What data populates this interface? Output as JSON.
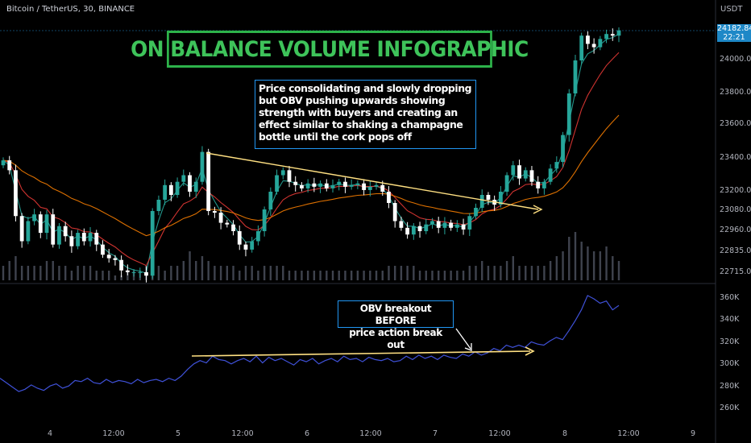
{
  "header": {
    "symbol": "Bitcoin / TetherUS, 30, BINANCE",
    "unit": "USDT"
  },
  "title": "ON BALANCE VOLUME INFOGRAPHIC",
  "annotations": {
    "price_note": "Price consolidating and slowly dropping but OBV pushing upwards showing strength with buyers and creating an effect similar to shaking a champagne bottle until the cork pops off",
    "obv_note_line1": "OBV breakout BEFORE",
    "obv_note_line2": "price action break out"
  },
  "last_price": {
    "value": "24182.84",
    "countdown": "22:21"
  },
  "colors": {
    "up": "#26a69a",
    "down": "#ffffff",
    "obv": "#3f51d8",
    "ema_fast": "#26a69a",
    "ema_mid": "#e53935",
    "ema_slow": "#f57c00",
    "trendline": "#ffe082",
    "title": "#3ec35a",
    "note_border": "#2196f3"
  },
  "chart_data": [
    {
      "type": "candlestick",
      "title": "",
      "y_ticks": [
        "24000.00",
        "23800.00",
        "23600.00",
        "23400.00",
        "23200.00",
        "23080.00",
        "22960.00",
        "22835.00",
        "22715.00"
      ],
      "x_ticks": [
        "4",
        "12:00",
        "5",
        "12:00",
        "6",
        "12:00",
        "7",
        "12:00",
        "8",
        "12:00",
        "9"
      ],
      "ylim": [
        22690,
        24320
      ],
      "series_close": [
        23390,
        23330,
        23050,
        22900,
        23020,
        23060,
        22950,
        23060,
        22880,
        22990,
        22930,
        22870,
        22950,
        22900,
        22950,
        22880,
        22820,
        22800,
        22790,
        22730,
        22720,
        22720,
        22720,
        22700,
        23080,
        23150,
        23240,
        23180,
        23260,
        23300,
        23200,
        23260,
        23440,
        23080,
        23070,
        23010,
        23000,
        22960,
        22880,
        22850,
        22900,
        22960,
        23090,
        23200,
        23300,
        23330,
        23260,
        23240,
        23220,
        23250,
        23230,
        23250,
        23220,
        23240,
        23260,
        23230,
        23240,
        23250,
        23210,
        23230,
        23240,
        23200,
        23130,
        23020,
        22980,
        22940,
        22990,
        22960,
        23000,
        23020,
        22980,
        23010,
        22980,
        23000,
        22970,
        23050,
        23100,
        23180,
        23150,
        23120,
        23200,
        23300,
        23360,
        23280,
        23330,
        23260,
        23220,
        23260,
        23340,
        23380,
        23540,
        23800,
        24000,
        24150,
        24100,
        24080,
        24130,
        24160,
        24150,
        24182
      ],
      "volume_rel": [
        0.3,
        0.4,
        0.5,
        0.3,
        0.3,
        0.3,
        0.3,
        0.4,
        0.4,
        0.3,
        0.3,
        0.2,
        0.3,
        0.3,
        0.3,
        0.2,
        0.2,
        0.2,
        0.1,
        0.1,
        0.2,
        0.2,
        0.2,
        0.3,
        0.4,
        0.3,
        0.2,
        0.3,
        0.3,
        0.4,
        0.6,
        0.4,
        0.5,
        0.4,
        0.3,
        0.3,
        0.3,
        0.3,
        0.2,
        0.3,
        0.3,
        0.2,
        0.3,
        0.3,
        0.3,
        0.3,
        0.2,
        0.2,
        0.2,
        0.2,
        0.2,
        0.2,
        0.2,
        0.2,
        0.2,
        0.2,
        0.2,
        0.2,
        0.2,
        0.2,
        0.2,
        0.2,
        0.3,
        0.3,
        0.3,
        0.3,
        0.3,
        0.2,
        0.2,
        0.2,
        0.2,
        0.2,
        0.2,
        0.2,
        0.2,
        0.3,
        0.3,
        0.4,
        0.3,
        0.3,
        0.3,
        0.4,
        0.5,
        0.3,
        0.3,
        0.3,
        0.3,
        0.3,
        0.4,
        0.5,
        0.6,
        0.9,
        1.0,
        0.8,
        0.7,
        0.6,
        0.6,
        0.7,
        0.5,
        0.4
      ]
    },
    {
      "type": "line",
      "title": "",
      "y_ticks": [
        "360K",
        "340K",
        "320K",
        "300K",
        "280K",
        "260K"
      ],
      "ylim": [
        250,
        368
      ],
      "values": [
        288,
        284,
        280,
        276,
        278,
        282,
        279,
        277,
        281,
        283,
        279,
        281,
        286,
        285,
        288,
        284,
        283,
        287,
        284,
        286,
        285,
        283,
        287,
        284,
        286,
        287,
        285,
        288,
        286,
        290,
        296,
        301,
        304,
        302,
        308,
        305,
        304,
        301,
        304,
        306,
        303,
        308,
        302,
        307,
        304,
        306,
        303,
        300,
        305,
        303,
        306,
        301,
        304,
        306,
        303,
        308,
        305,
        306,
        303,
        307,
        305,
        304,
        306,
        303,
        304,
        308,
        305,
        309,
        306,
        308,
        305,
        309,
        307,
        306,
        310,
        308,
        312,
        309,
        311,
        315,
        313,
        318,
        316,
        318,
        316,
        321,
        319,
        318,
        322,
        325,
        323,
        331,
        340,
        350,
        363,
        360,
        356,
        358,
        350,
        354
      ]
    }
  ]
}
